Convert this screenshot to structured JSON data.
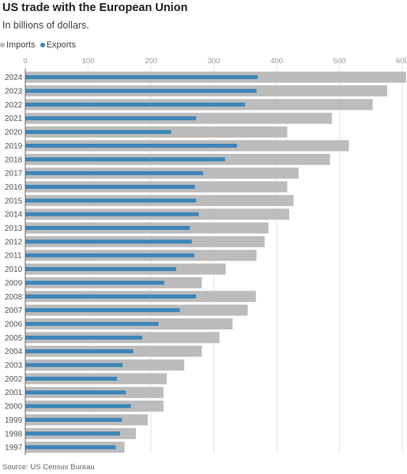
{
  "header": {
    "title": "US trade with the European Union",
    "subtitle": "In billions of dollars."
  },
  "legend": {
    "imports_label": "Imports",
    "exports_label": "Exports"
  },
  "colors": {
    "imports": "#bcbcbc",
    "exports": "#3d85b8"
  },
  "footer": {
    "source": "Source: US Census Bureau"
  },
  "chart_data": {
    "type": "bar",
    "orientation": "horizontal",
    "title": "US trade with the European Union",
    "subtitle": "In billions of dollars.",
    "xlim": [
      0,
      600
    ],
    "x_ticks": [
      0,
      100,
      200,
      300,
      400,
      500,
      600
    ],
    "grid": true,
    "legend_position": "top-left",
    "categories": [
      "2024",
      "2023",
      "2022",
      "2021",
      "2020",
      "2019",
      "2018",
      "2017",
      "2016",
      "2015",
      "2014",
      "2013",
      "2012",
      "2011",
      "2010",
      "2009",
      "2008",
      "2007",
      "2006",
      "2005",
      "2004",
      "2003",
      "2002",
      "2001",
      "2000",
      "1999",
      "1998",
      "1997"
    ],
    "series": [
      {
        "name": "Imports",
        "values": [
          606,
          576,
          553,
          488,
          417,
          515,
          485,
          435,
          417,
          427,
          420,
          387,
          381,
          368,
          319,
          281,
          367,
          354,
          330,
          309,
          281,
          253,
          225,
          220,
          220,
          195,
          176,
          158
        ]
      },
      {
        "name": "Exports",
        "values": [
          370,
          368,
          350,
          272,
          232,
          337,
          318,
          283,
          270,
          272,
          276,
          262,
          265,
          269,
          240,
          221,
          272,
          246,
          212,
          186,
          172,
          155,
          146,
          160,
          168,
          154,
          151,
          144
        ]
      }
    ]
  }
}
